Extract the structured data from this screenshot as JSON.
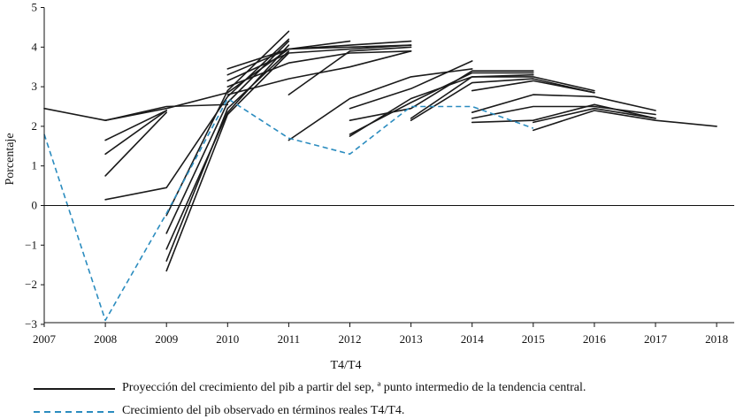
{
  "chart_data": {
    "type": "line",
    "xlabel": "T4/T4",
    "ylabel": "Porcentaje",
    "xlim": [
      2007,
      2018.5
    ],
    "ylim": [
      -3,
      5
    ],
    "x_ticks": [
      2007,
      2008,
      2009,
      2010,
      2011,
      2012,
      2013,
      2014,
      2015,
      2016,
      2017,
      2018
    ],
    "y_ticks": [
      -3,
      -2,
      -1,
      0,
      1,
      2,
      3,
      4,
      5
    ],
    "series": [
      {
        "name": "Proyección del crecimiento del pib a partir del sep, ª punto intermedio de la tendencia central.",
        "style": "solid",
        "color": "#1a1a1a",
        "lines": [
          [
            [
              2007,
              2.45
            ],
            [
              2008,
              2.15
            ],
            [
              2009,
              2.5
            ],
            [
              2010,
              2.55
            ]
          ],
          [
            [
              2008,
              2.15
            ],
            [
              2009,
              2.45
            ],
            [
              2010,
              2.85
            ],
            [
              2011,
              3.95
            ],
            [
              2012,
              4.15
            ]
          ],
          [
            [
              2008,
              1.65
            ],
            [
              2009,
              2.4
            ]
          ],
          [
            [
              2008,
              1.3
            ],
            [
              2009,
              2.4
            ]
          ],
          [
            [
              2008,
              0.75
            ],
            [
              2009,
              2.35
            ]
          ],
          [
            [
              2008,
              0.15
            ],
            [
              2009,
              0.45
            ],
            [
              2010,
              2.75
            ],
            [
              2011,
              4.2
            ]
          ],
          [
            [
              2009,
              -0.25
            ],
            [
              2010,
              2.9
            ],
            [
              2011,
              4.4
            ]
          ],
          [
            [
              2009,
              -0.7
            ],
            [
              2010,
              2.6
            ],
            [
              2011,
              4.15
            ]
          ],
          [
            [
              2009,
              -1.1
            ],
            [
              2010,
              2.35
            ],
            [
              2011,
              4.05
            ]
          ],
          [
            [
              2009,
              -1.4
            ],
            [
              2010,
              2.45
            ],
            [
              2011,
              3.9
            ]
          ],
          [
            [
              2009,
              -1.65
            ],
            [
              2010,
              2.3
            ],
            [
              2011,
              3.85
            ]
          ],
          [
            [
              2010,
              3.45
            ],
            [
              2011,
              3.95
            ],
            [
              2012,
              4.05
            ],
            [
              2013,
              4.15
            ]
          ],
          [
            [
              2010,
              3.3
            ],
            [
              2011,
              3.95
            ],
            [
              2012,
              4.0
            ],
            [
              2013,
              4.05
            ]
          ],
          [
            [
              2010,
              3.15
            ],
            [
              2011,
              3.85
            ],
            [
              2012,
              3.95
            ],
            [
              2013,
              4.05
            ]
          ],
          [
            [
              2010,
              3.0
            ],
            [
              2011,
              3.6
            ],
            [
              2012,
              3.85
            ],
            [
              2013,
              3.9
            ]
          ],
          [
            [
              2010,
              2.8
            ],
            [
              2011,
              3.2
            ],
            [
              2012,
              3.5
            ],
            [
              2013,
              3.9
            ]
          ],
          [
            [
              2011,
              2.8
            ],
            [
              2012,
              3.9
            ],
            [
              2013,
              4.0
            ]
          ],
          [
            [
              2011,
              1.65
            ],
            [
              2012,
              2.7
            ],
            [
              2013,
              3.25
            ],
            [
              2014,
              3.45
            ]
          ],
          [
            [
              2012,
              2.45
            ],
            [
              2013,
              2.95
            ],
            [
              2014,
              3.65
            ]
          ],
          [
            [
              2012,
              2.15
            ],
            [
              2013,
              2.45
            ],
            [
              2014,
              3.4
            ],
            [
              2015,
              3.4
            ]
          ],
          [
            [
              2012,
              1.8
            ],
            [
              2013,
              2.6
            ],
            [
              2014,
              3.35
            ],
            [
              2015,
              3.35
            ]
          ],
          [
            [
              2012,
              1.75
            ],
            [
              2013,
              2.7
            ],
            [
              2014,
              3.25
            ],
            [
              2015,
              3.3
            ]
          ],
          [
            [
              2013,
              2.2
            ],
            [
              2014,
              3.25
            ],
            [
              2015,
              3.25
            ],
            [
              2016,
              2.9
            ]
          ],
          [
            [
              2013,
              2.15
            ],
            [
              2014,
              3.1
            ],
            [
              2015,
              3.2
            ],
            [
              2016,
              2.85
            ]
          ],
          [
            [
              2014,
              2.9
            ],
            [
              2015,
              3.15
            ],
            [
              2016,
              2.85
            ]
          ],
          [
            [
              2014,
              2.35
            ],
            [
              2015,
              2.8
            ],
            [
              2016,
              2.75
            ],
            [
              2017,
              2.4
            ]
          ],
          [
            [
              2014,
              2.2
            ],
            [
              2015,
              2.5
            ],
            [
              2016,
              2.5
            ],
            [
              2017,
              2.3
            ]
          ],
          [
            [
              2014,
              2.1
            ],
            [
              2015,
              2.15
            ],
            [
              2016,
              2.55
            ],
            [
              2017,
              2.2
            ]
          ],
          [
            [
              2015,
              2.1
            ],
            [
              2016,
              2.45
            ],
            [
              2017,
              2.2
            ]
          ],
          [
            [
              2015,
              1.9
            ],
            [
              2016,
              2.4
            ],
            [
              2017,
              2.15
            ],
            [
              2018,
              2.0
            ]
          ]
        ]
      },
      {
        "name": "Crecimiento del pib observado en términos reales T4/T4.",
        "style": "dashed",
        "color": "#2b8cbf",
        "points": [
          [
            2007,
            1.8
          ],
          [
            2008,
            -2.9
          ],
          [
            2009,
            -0.2
          ],
          [
            2010,
            2.7
          ],
          [
            2011,
            1.7
          ],
          [
            2012,
            1.3
          ],
          [
            2013,
            2.5
          ],
          [
            2014,
            2.5
          ],
          [
            2015,
            1.95
          ]
        ]
      }
    ]
  }
}
